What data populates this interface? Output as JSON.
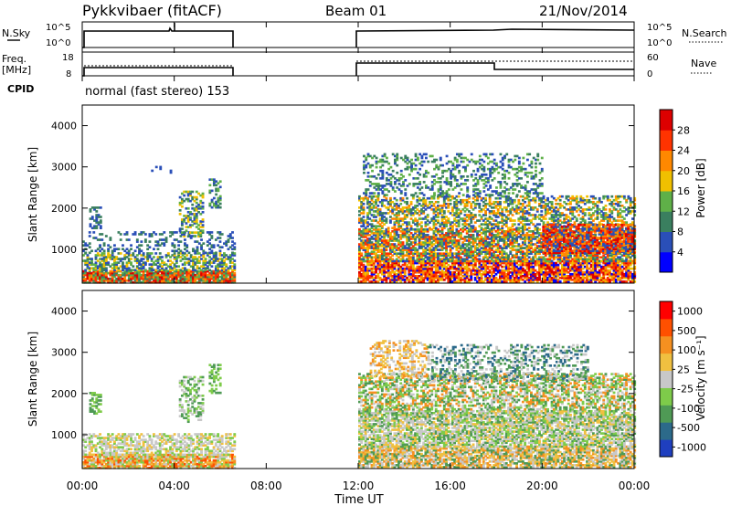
{
  "header": {
    "title": "Pykkvibaer (fitACF)",
    "beam": "Beam 01",
    "date": "21/Nov/2014"
  },
  "noise_panel": {
    "left_label": "N.Sky",
    "right_label": "N.Search",
    "left_ticks": [
      "10^5",
      "10^0"
    ],
    "right_ticks": [
      "10^5",
      "10^0"
    ]
  },
  "freq_panel": {
    "left_label_line1": "Freq.",
    "left_label_line2": "[MHz]",
    "right_label": "Nave",
    "left_ticks": [
      "18",
      "8"
    ],
    "right_ticks": [
      "60",
      "0"
    ]
  },
  "cpid": {
    "label": "CPID",
    "value": "normal (fast stereo) 153"
  },
  "x_axis": {
    "label": "Time UT",
    "ticks": [
      "00:00",
      "04:00",
      "08:00",
      "12:00",
      "16:00",
      "20:00",
      "00:00"
    ]
  },
  "colors": {
    "power": [
      "#0000ff",
      "#2a4fb8",
      "#3a7f5f",
      "#5fb048",
      "#f0c000",
      "#ff8800",
      "#ff3300",
      "#dd0000"
    ],
    "velocity": [
      "#1f3fbf",
      "#2c6a8a",
      "#4f9a55",
      "#7ecb4a",
      "#c8c8c8",
      "#f0c040",
      "#f59020",
      "#ff5000",
      "#ff0000"
    ]
  },
  "chart_data": [
    {
      "type": "heatmap",
      "title": "",
      "xlabel": "",
      "ylabel": "Slant Range [km]",
      "ylim": [
        180,
        4500
      ],
      "y_ticks": [
        1000,
        2000,
        3000,
        4000
      ],
      "colorbar": {
        "label": "Power [dB]",
        "ticks": [
          4,
          8,
          12,
          16,
          20,
          24,
          28
        ],
        "range": [
          0,
          30
        ]
      }
    },
    {
      "type": "heatmap",
      "title": "",
      "xlabel": "Time UT",
      "ylabel": "Slant Range [km]",
      "ylim": [
        180,
        4500
      ],
      "y_ticks": [
        1000,
        2000,
        3000,
        4000
      ],
      "colorbar": {
        "label": "Velocity [m s⁻¹]",
        "ticks": [
          1000,
          500,
          100,
          25,
          -25,
          -100,
          -500,
          -1000
        ]
      }
    }
  ]
}
